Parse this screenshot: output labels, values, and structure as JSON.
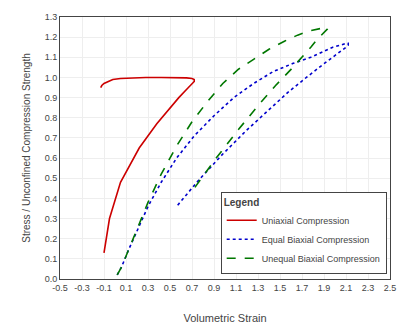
{
  "chart_data": {
    "type": "line",
    "xlabel": "Volumetric Strain",
    "ylabel": "Stress / Unconfined Compression Strength",
    "xlim": [
      -0.5,
      2.5
    ],
    "ylim": [
      0.0,
      1.3
    ],
    "xticks": [
      -0.5,
      -0.3,
      -0.1,
      0.1,
      0.3,
      0.5,
      0.7,
      0.9,
      1.1,
      1.3,
      1.5,
      1.7,
      1.9,
      2.1,
      2.3,
      2.5
    ],
    "yticks": [
      {
        "value": 0.0,
        "label": "0.0"
      },
      0.1,
      0.2,
      0.3,
      0.4,
      0.5,
      0.6,
      0.7,
      0.8,
      0.9,
      {
        "value": 1.0,
        "label": "1.0"
      },
      1.1,
      1.2,
      1.3
    ],
    "grid": true,
    "legend": "lower right",
    "legend_title": "Legend",
    "series": [
      {
        "name": "Uniaxial Compression",
        "color": "#cc0000",
        "line_style": "solid",
        "x": [
          -0.13,
          -0.12,
          -0.1,
          -0.08,
          -0.05,
          -0.02,
          0.05,
          0.15,
          0.28,
          0.42,
          0.55,
          0.65,
          0.7,
          0.72,
          0.72,
          0.7,
          0.65,
          0.58,
          0.5,
          0.38,
          0.22,
          0.05,
          -0.05,
          -0.1
        ],
        "values": [
          0.95,
          0.96,
          0.97,
          0.975,
          0.98,
          0.99,
          0.995,
          0.998,
          1.0,
          1.0,
          1.0,
          0.998,
          0.995,
          0.99,
          0.98,
          0.97,
          0.94,
          0.9,
          0.85,
          0.77,
          0.65,
          0.48,
          0.3,
          0.13
        ]
      },
      {
        "name": "Equal Biaxial Compression",
        "color": "#0000cc",
        "line_style": "dotted",
        "x": [
          0.02,
          0.06,
          0.12,
          0.2,
          0.3,
          0.42,
          0.56,
          0.72,
          0.9,
          1.08,
          1.26,
          1.44,
          1.62,
          1.78,
          1.9,
          1.98,
          2.05,
          2.1,
          2.12,
          2.12,
          2.1,
          2.05,
          1.98,
          1.88,
          1.74,
          1.58,
          1.4,
          1.2,
          0.98,
          0.76,
          0.56
        ],
        "values": [
          0.02,
          0.06,
          0.14,
          0.24,
          0.36,
          0.48,
          0.6,
          0.71,
          0.81,
          0.9,
          0.97,
          1.03,
          1.07,
          1.1,
          1.13,
          1.15,
          1.16,
          1.17,
          1.17,
          1.16,
          1.15,
          1.13,
          1.1,
          1.06,
          1.0,
          0.93,
          0.84,
          0.74,
          0.62,
          0.49,
          0.36
        ]
      },
      {
        "name": "Unequal Biaxial Compression",
        "color": "#007700",
        "line_style": "dashed",
        "x": [
          0.02,
          0.06,
          0.12,
          0.2,
          0.3,
          0.42,
          0.56,
          0.7,
          0.84,
          0.98,
          1.12,
          1.26,
          1.4,
          1.54,
          1.66,
          1.76,
          1.84,
          1.88,
          1.91,
          1.93,
          1.93,
          1.91,
          1.88,
          1.84,
          1.78,
          1.7,
          1.6,
          1.46,
          1.3,
          1.12,
          0.92,
          0.72
        ],
        "values": [
          0.02,
          0.06,
          0.14,
          0.25,
          0.38,
          0.52,
          0.66,
          0.78,
          0.88,
          0.97,
          1.04,
          1.09,
          1.14,
          1.18,
          1.21,
          1.23,
          1.24,
          1.245,
          1.248,
          1.25,
          1.24,
          1.23,
          1.21,
          1.19,
          1.15,
          1.1,
          1.04,
          0.96,
          0.86,
          0.74,
          0.6,
          0.45
        ]
      }
    ]
  }
}
